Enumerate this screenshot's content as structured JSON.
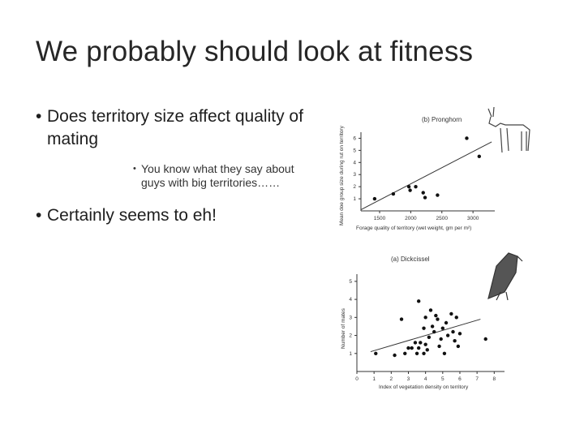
{
  "slide": {
    "title": "We probably should look at fitness",
    "bullets": [
      {
        "level": 1,
        "text": "Does territory size affect quality of mating"
      },
      {
        "level": 2,
        "text": "You know what they say about guys with big territories……"
      },
      {
        "level": 1,
        "text": "Certainly seems to eh!"
      }
    ]
  },
  "chart_data": [
    {
      "type": "scatter",
      "title": "(b) Pronghorn",
      "xlabel": "Forage quality of territory (wet weight, gm per m²)",
      "ylabel": "Mean doe group size during rut on territory",
      "xlim": [
        1200,
        3350
      ],
      "ylim": [
        0,
        6.5
      ],
      "x_ticks": [
        1500,
        2000,
        2500,
        3000
      ],
      "y_ticks": [
        1,
        2,
        3,
        4,
        5,
        6
      ],
      "points": [
        {
          "x": 1420,
          "y": 1.0
        },
        {
          "x": 1720,
          "y": 1.4
        },
        {
          "x": 1970,
          "y": 2.0
        },
        {
          "x": 1990,
          "y": 1.7
        },
        {
          "x": 2080,
          "y": 2.0
        },
        {
          "x": 2200,
          "y": 1.5
        },
        {
          "x": 2230,
          "y": 1.1
        },
        {
          "x": 2430,
          "y": 1.3
        },
        {
          "x": 2900,
          "y": 6.0
        },
        {
          "x": 3100,
          "y": 4.5
        }
      ],
      "trend": [
        {
          "x": 1200,
          "y": 0.1
        },
        {
          "x": 3300,
          "y": 5.7
        }
      ]
    },
    {
      "type": "scatter",
      "title": "(a) Dickcissel",
      "xlabel": "Index of vegetation density on territory",
      "ylabel": "Number of mates",
      "xlim": [
        0,
        8.6
      ],
      "ylim": [
        0,
        5.4
      ],
      "x_ticks": [
        0,
        1,
        2,
        3,
        4,
        5,
        6,
        7,
        8
      ],
      "y_ticks": [
        1,
        2,
        3,
        4,
        5
      ],
      "points": [
        {
          "x": 1.1,
          "y": 1.0
        },
        {
          "x": 2.2,
          "y": 0.9
        },
        {
          "x": 2.8,
          "y": 1.0
        },
        {
          "x": 3.0,
          "y": 1.3
        },
        {
          "x": 3.2,
          "y": 1.3
        },
        {
          "x": 3.4,
          "y": 1.6
        },
        {
          "x": 3.5,
          "y": 1.0
        },
        {
          "x": 3.6,
          "y": 1.3
        },
        {
          "x": 3.7,
          "y": 1.6
        },
        {
          "x": 3.9,
          "y": 1.0
        },
        {
          "x": 4.0,
          "y": 1.5
        },
        {
          "x": 4.1,
          "y": 1.2
        },
        {
          "x": 4.2,
          "y": 1.9
        },
        {
          "x": 4.4,
          "y": 2.5
        },
        {
          "x": 4.5,
          "y": 2.2
        },
        {
          "x": 4.6,
          "y": 3.1
        },
        {
          "x": 4.7,
          "y": 2.9
        },
        {
          "x": 4.8,
          "y": 1.4
        },
        {
          "x": 4.9,
          "y": 1.8
        },
        {
          "x": 5.0,
          "y": 2.4
        },
        {
          "x": 5.1,
          "y": 1.0
        },
        {
          "x": 5.2,
          "y": 2.7
        },
        {
          "x": 5.3,
          "y": 2.0
        },
        {
          "x": 5.5,
          "y": 3.2
        },
        {
          "x": 5.6,
          "y": 2.2
        },
        {
          "x": 5.7,
          "y": 1.7
        },
        {
          "x": 5.8,
          "y": 3.0
        },
        {
          "x": 5.9,
          "y": 1.4
        },
        {
          "x": 6.0,
          "y": 2.1
        },
        {
          "x": 3.6,
          "y": 3.9
        },
        {
          "x": 3.9,
          "y": 2.4
        },
        {
          "x": 4.3,
          "y": 3.4
        },
        {
          "x": 2.6,
          "y": 2.9
        },
        {
          "x": 4.0,
          "y": 3.0
        },
        {
          "x": 7.5,
          "y": 1.8
        }
      ],
      "trend": [
        {
          "x": 0.8,
          "y": 1.1
        },
        {
          "x": 7.2,
          "y": 2.9
        }
      ]
    }
  ]
}
